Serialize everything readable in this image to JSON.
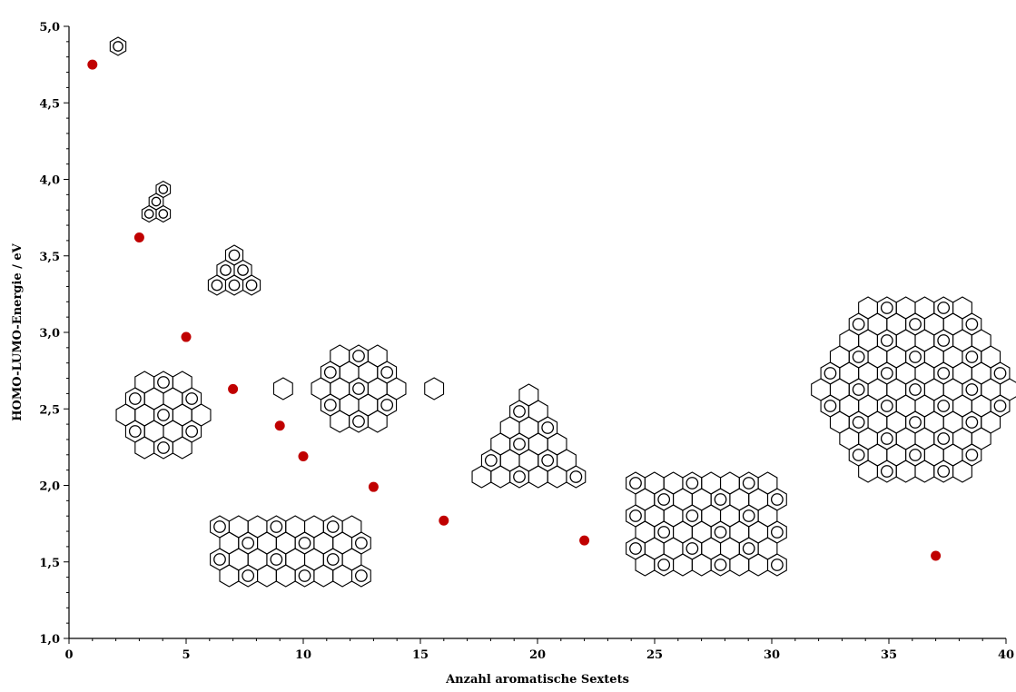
{
  "chart_data": {
    "type": "scatter",
    "title": "",
    "xlabel": "Anzahl aromatische Sextets",
    "ylabel": "HOMO-LUMO-Energie / eV",
    "xlim": [
      0,
      40
    ],
    "ylim": [
      1.0,
      5.0
    ],
    "x_major_ticks": [
      0,
      5,
      10,
      15,
      20,
      25,
      30,
      35,
      40
    ],
    "y_major_ticks": [
      1.0,
      1.5,
      2.0,
      2.5,
      3.0,
      3.5,
      4.0,
      4.5,
      5.0
    ],
    "x_tick_labels": [
      "0",
      "5",
      "10",
      "15",
      "20",
      "25",
      "30",
      "35",
      "40"
    ],
    "y_tick_labels": [
      "1,0",
      "1,5",
      "2,0",
      "2,5",
      "3,0",
      "3,5",
      "4,0",
      "4,5",
      "5,0"
    ],
    "grid": false,
    "marker_color": "#c00000",
    "points": [
      {
        "x": 1,
        "y": 4.75
      },
      {
        "x": 3,
        "y": 3.62
      },
      {
        "x": 5,
        "y": 2.97
      },
      {
        "x": 7,
        "y": 2.63
      },
      {
        "x": 9,
        "y": 2.39
      },
      {
        "x": 10,
        "y": 2.19
      },
      {
        "x": 13,
        "y": 1.99
      },
      {
        "x": 16,
        "y": 1.77
      },
      {
        "x": 22,
        "y": 1.64
      },
      {
        "x": 37,
        "y": 1.54
      }
    ],
    "molecule_illustrations": [
      "benzene-icon",
      "triphenylene-icon",
      "pah-triangle-icon",
      "pah-hexagon-icon",
      "pah-rhombus-icon",
      "pah-triangle-large-icon",
      "pah-rectangle-icon",
      "pah-large-rectangle-icon",
      "pah-large-hexagon-icon"
    ]
  }
}
